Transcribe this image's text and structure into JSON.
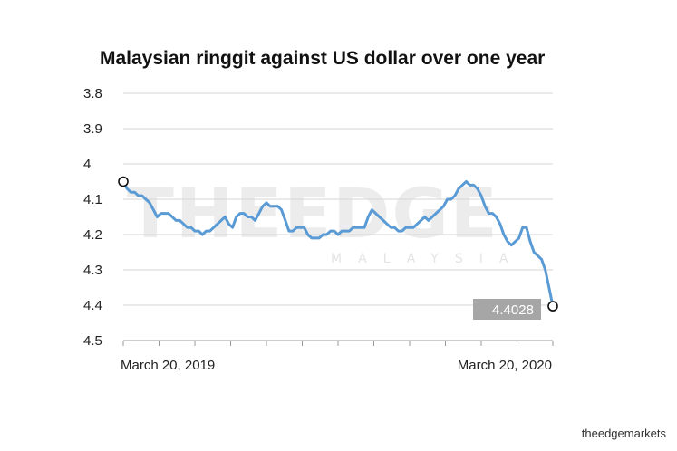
{
  "chart_data": {
    "type": "line",
    "title": "Malaysian ringgit against US dollar over one year",
    "y_axis": {
      "inverted": true,
      "ylim": [
        3.8,
        4.5
      ],
      "ticks": [
        "3.8",
        "3.9",
        "4",
        "4.1",
        "4.2",
        "4.3",
        "4.4",
        "4.5"
      ]
    },
    "x_axis": {
      "tick_labels": [
        "March 20, 2019",
        "March 20, 2020"
      ]
    },
    "grid": "horizontal",
    "last_value_label": "4.4028",
    "series": [
      {
        "color": "#5b9bd5",
        "values": [
          4.05,
          4.07,
          4.08,
          4.08,
          4.09,
          4.09,
          4.1,
          4.11,
          4.13,
          4.15,
          4.14,
          4.14,
          4.14,
          4.15,
          4.16,
          4.16,
          4.17,
          4.18,
          4.18,
          4.19,
          4.19,
          4.2,
          4.19,
          4.19,
          4.18,
          4.17,
          4.16,
          4.15,
          4.17,
          4.18,
          4.15,
          4.14,
          4.14,
          4.15,
          4.15,
          4.16,
          4.14,
          4.12,
          4.11,
          4.12,
          4.12,
          4.12,
          4.13,
          4.16,
          4.19,
          4.19,
          4.18,
          4.18,
          4.18,
          4.2,
          4.21,
          4.21,
          4.21,
          4.2,
          4.2,
          4.19,
          4.19,
          4.2,
          4.19,
          4.19,
          4.19,
          4.18,
          4.18,
          4.18,
          4.18,
          4.15,
          4.13,
          4.14,
          4.15,
          4.16,
          4.17,
          4.18,
          4.18,
          4.19,
          4.19,
          4.18,
          4.18,
          4.18,
          4.17,
          4.16,
          4.15,
          4.16,
          4.15,
          4.14,
          4.13,
          4.12,
          4.1,
          4.1,
          4.09,
          4.07,
          4.06,
          4.05,
          4.06,
          4.06,
          4.07,
          4.09,
          4.12,
          4.14,
          4.14,
          4.15,
          4.17,
          4.2,
          4.22,
          4.23,
          4.22,
          4.21,
          4.18,
          4.18,
          4.22,
          4.25,
          4.26,
          4.27,
          4.3,
          4.35,
          4.4028
        ]
      }
    ]
  },
  "credit": "theedgemarkets",
  "watermark": {
    "main": "THEEDGE",
    "sub": "MALAYSIA"
  }
}
